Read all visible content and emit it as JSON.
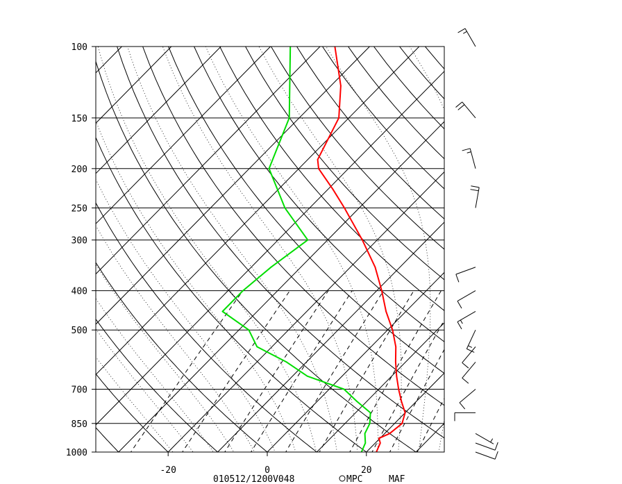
{
  "chart_data": {
    "type": "line",
    "title": "",
    "xlabel": "",
    "ylabel": "",
    "diagram": "skew-T log-p",
    "pressure_ticks": [
      100,
      150,
      200,
      250,
      300,
      400,
      500,
      700,
      850,
      1000
    ],
    "pressure_range": [
      1000,
      100
    ],
    "temperature_ticks": [
      -20,
      0,
      20
    ],
    "temperature_range": [
      -35,
      35
    ],
    "series": [
      {
        "key": "temperature",
        "color": "#ff0000",
        "points": [
          {
            "p": 1000,
            "t": 22.0
          },
          {
            "p": 950,
            "t": 21.0
          },
          {
            "p": 925,
            "t": 19.8
          },
          {
            "p": 900,
            "t": 21.0
          },
          {
            "p": 850,
            "t": 21.5
          },
          {
            "p": 800,
            "t": 20.0
          },
          {
            "p": 750,
            "t": 17.0
          },
          {
            "p": 700,
            "t": 14.0
          },
          {
            "p": 650,
            "t": 11.0
          },
          {
            "p": 600,
            "t": 8.0
          },
          {
            "p": 550,
            "t": 5.0
          },
          {
            "p": 500,
            "t": 1.0
          },
          {
            "p": 450,
            "t": -4.0
          },
          {
            "p": 400,
            "t": -9.0
          },
          {
            "p": 350,
            "t": -15.0
          },
          {
            "p": 300,
            "t": -23.0
          },
          {
            "p": 250,
            "t": -33.0
          },
          {
            "p": 225,
            "t": -39.0
          },
          {
            "p": 200,
            "t": -46.0
          },
          {
            "p": 190,
            "t": -48.0
          },
          {
            "p": 150,
            "t": -52.0
          },
          {
            "p": 125,
            "t": -58.0
          },
          {
            "p": 100,
            "t": -67.0
          }
        ]
      },
      {
        "key": "dewpoint",
        "color": "#00dd00",
        "points": [
          {
            "p": 1000,
            "t": 19.0
          },
          {
            "p": 950,
            "t": 18.0
          },
          {
            "p": 900,
            "t": 16.0
          },
          {
            "p": 850,
            "t": 15.0
          },
          {
            "p": 800,
            "t": 13.0
          },
          {
            "p": 750,
            "t": 8.0
          },
          {
            "p": 700,
            "t": 3.0
          },
          {
            "p": 650,
            "t": -7.0
          },
          {
            "p": 600,
            "t": -14.0
          },
          {
            "p": 550,
            "t": -23.0
          },
          {
            "p": 500,
            "t": -28.0
          },
          {
            "p": 450,
            "t": -37.0
          },
          {
            "p": 400,
            "t": -37.0
          },
          {
            "p": 350,
            "t": -36.0
          },
          {
            "p": 300,
            "t": -34.0
          },
          {
            "p": 250,
            "t": -45.0
          },
          {
            "p": 200,
            "t": -56.0
          },
          {
            "p": 150,
            "t": -62.0
          },
          {
            "p": 100,
            "t": -76.0
          }
        ]
      }
    ],
    "wind_barbs": [
      {
        "p": 100,
        "dir": 330,
        "spd": 15
      },
      {
        "p": 150,
        "dir": 320,
        "spd": 20
      },
      {
        "p": 200,
        "dir": 345,
        "spd": 15
      },
      {
        "p": 250,
        "dir": 10,
        "spd": 20
      },
      {
        "p": 350,
        "dir": 250,
        "spd": 10
      },
      {
        "p": 400,
        "dir": 240,
        "spd": 10
      },
      {
        "p": 450,
        "dir": 240,
        "spd": 15
      },
      {
        "p": 500,
        "dir": 205,
        "spd": 15
      },
      {
        "p": 550,
        "dir": 220,
        "spd": 10
      },
      {
        "p": 600,
        "dir": 220,
        "spd": 10
      },
      {
        "p": 700,
        "dir": 230,
        "spd": 10
      },
      {
        "p": 800,
        "dir": 270,
        "spd": 10
      },
      {
        "p": 900,
        "dir": 120,
        "spd": 5
      },
      {
        "p": 950,
        "dir": 110,
        "spd": 10
      },
      {
        "p": 1000,
        "dir": 110,
        "spd": 10
      }
    ],
    "footer": {
      "valid_time": "010512/1200V048",
      "source": "MPC",
      "station": "MAF"
    }
  }
}
